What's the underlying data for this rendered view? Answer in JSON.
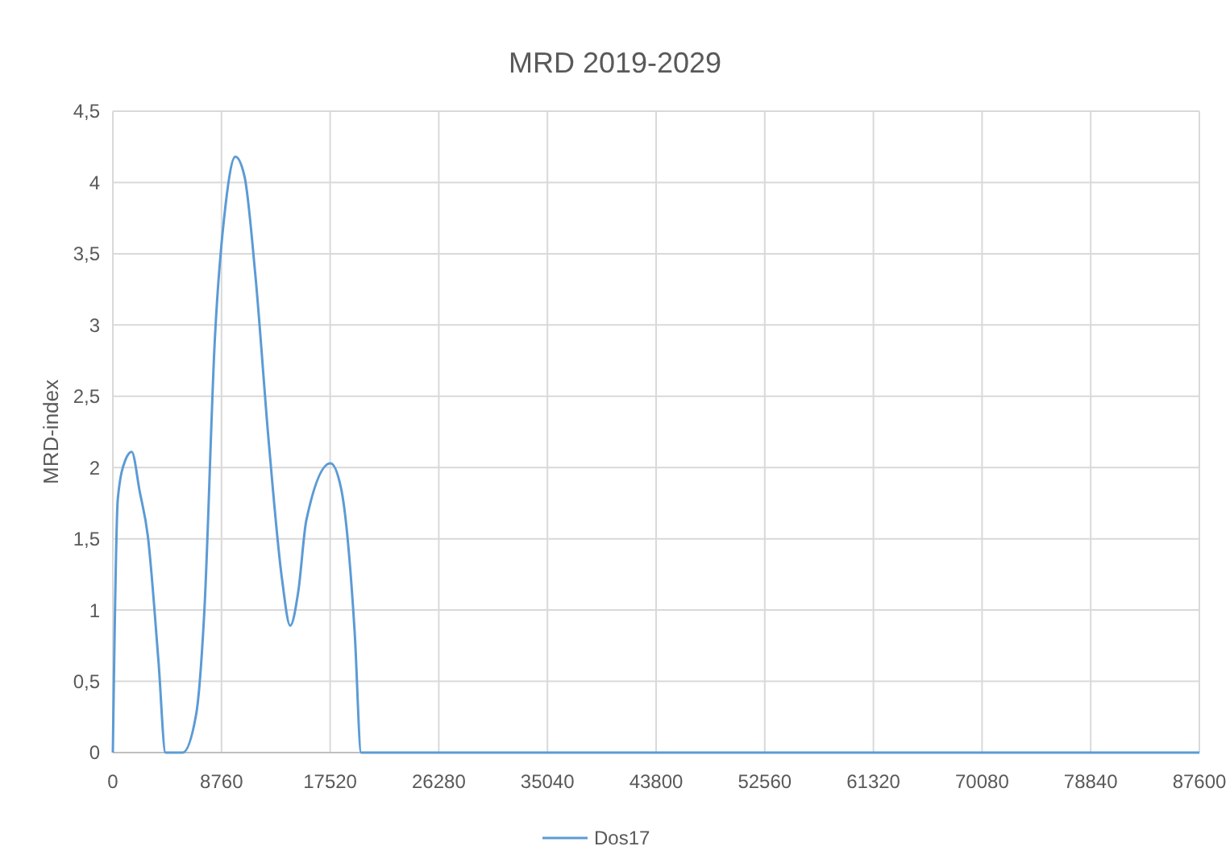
{
  "chart_data": {
    "type": "line",
    "title": "MRD 2019-2029",
    "ylabel": "MRD-index",
    "x": [
      0,
      400,
      1000,
      1520,
      2170,
      2820,
      3680,
      4250,
      5630,
      6720,
      7370,
      8230,
      9100,
      9880,
      10620,
      11480,
      12560,
      13650,
      14300,
      14950,
      15600,
      17550,
      18410,
      19500,
      20020,
      87600
    ],
    "series": [
      {
        "name": "Dos17",
        "color": "#5b9bd5",
        "values": [
          0,
          1.78,
          2.05,
          2.11,
          1.83,
          1.52,
          0.64,
          0,
          0,
          0.27,
          0.98,
          2.91,
          3.85,
          4.18,
          4.04,
          3.36,
          2.19,
          1.21,
          0.89,
          1.13,
          1.63,
          2.03,
          1.85,
          0.84,
          0,
          0
        ]
      }
    ],
    "xlim": [
      0,
      87600
    ],
    "xticks": [
      0,
      8760,
      17520,
      26280,
      35040,
      43800,
      52560,
      61320,
      70080,
      78840,
      87600
    ],
    "ylim": [
      0,
      4.5
    ],
    "yticks": [
      {
        "value": 0,
        "label": "0"
      },
      {
        "value": 0.5,
        "label": "0,5"
      },
      {
        "value": 1,
        "label": "1"
      },
      {
        "value": 1.5,
        "label": "1,5"
      },
      {
        "value": 2,
        "label": "2"
      },
      {
        "value": 2.5,
        "label": "2,5"
      },
      {
        "value": 3,
        "label": "3"
      },
      {
        "value": 3.5,
        "label": "3,5"
      },
      {
        "value": 4,
        "label": "4"
      },
      {
        "value": 4.5,
        "label": "4,5"
      }
    ],
    "grid": true,
    "legend": "bottom",
    "marker": "none",
    "line_style": "solid"
  }
}
